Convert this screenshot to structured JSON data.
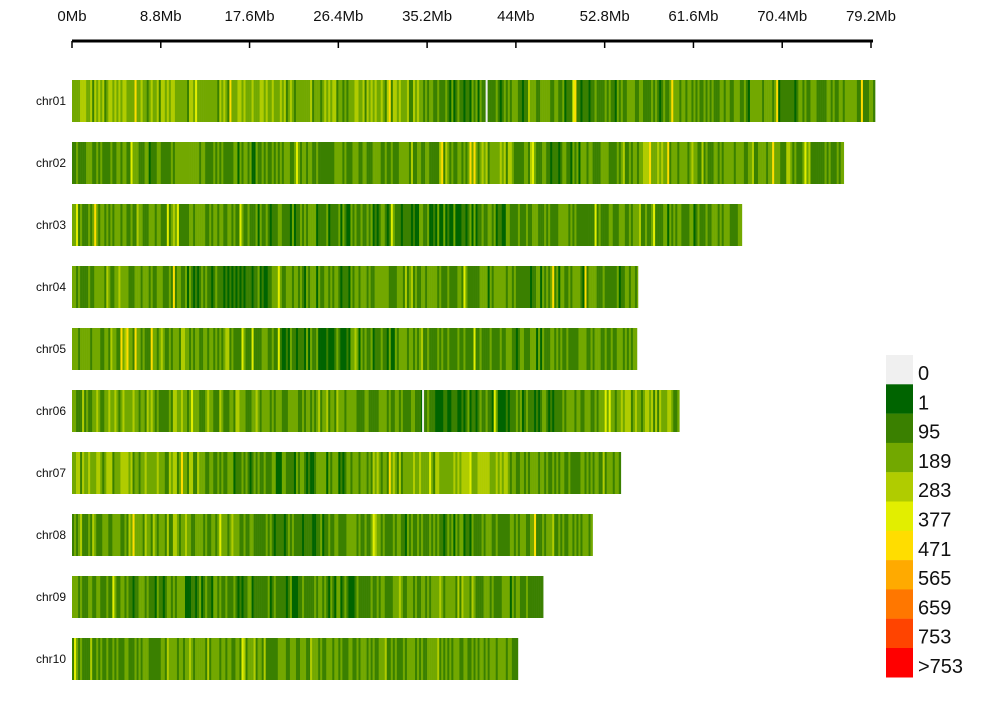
{
  "chart_data": {
    "type": "heatmap",
    "title": "",
    "xlabel": "",
    "ylabel": "",
    "x_unit": "Mb",
    "xlim": [
      0,
      79.2
    ],
    "x_ticks": [
      "0Mb",
      "8.8Mb",
      "17.6Mb",
      "26.4Mb",
      "35.2Mb",
      "44Mb",
      "52.8Mb",
      "61.6Mb",
      "70.4Mb",
      "79.2Mb"
    ],
    "x_tick_values": [
      0,
      8.8,
      17.6,
      26.4,
      35.2,
      44,
      52.8,
      61.6,
      70.4,
      79.2
    ],
    "segment_size_mb": 4,
    "chromosomes": [
      {
        "name": "chr01",
        "length_mb": 79.6,
        "gaps_mb": [
          41.0
        ],
        "density": [
          250,
          260,
          270,
          250,
          280,
          230,
          240,
          260,
          210,
          170,
          150,
          160,
          170,
          160,
          170,
          180,
          170,
          180,
          190,
          190
        ]
      },
      {
        "name": "chr02",
        "length_mb": 76.5,
        "gaps_mb": [],
        "density": [
          190,
          180,
          190,
          180,
          170,
          200,
          190,
          180,
          200,
          210,
          230,
          180,
          150,
          200,
          230,
          210,
          180,
          220,
          200
        ]
      },
      {
        "name": "chr03",
        "length_mb": 66.4,
        "gaps_mb": [],
        "density": [
          190,
          200,
          180,
          190,
          170,
          180,
          140,
          150,
          120,
          130,
          150,
          170,
          180,
          190,
          180,
          170,
          200
        ]
      },
      {
        "name": "chr04",
        "length_mb": 56.1,
        "gaps_mb": [],
        "density": [
          190,
          200,
          180,
          140,
          130,
          140,
          150,
          190,
          200,
          190,
          180,
          170,
          180,
          160
        ]
      },
      {
        "name": "chr05",
        "length_mb": 56.0,
        "gaps_mb": [],
        "density": [
          220,
          230,
          220,
          210,
          150,
          130,
          140,
          150,
          200,
          190,
          180,
          170,
          190,
          180
        ]
      },
      {
        "name": "chr06",
        "length_mb": 60.2,
        "gaps_mb": [
          34.7
        ],
        "density": [
          220,
          230,
          210,
          220,
          210,
          200,
          200,
          190,
          180,
          110,
          130,
          160,
          190,
          250,
          240
        ]
      },
      {
        "name": "chr07",
        "length_mb": 54.4,
        "gaps_mb": [],
        "density": [
          260,
          270,
          240,
          200,
          170,
          140,
          150,
          230,
          260,
          280,
          270,
          220,
          200,
          210
        ]
      },
      {
        "name": "chr08",
        "length_mb": 51.6,
        "gaps_mb": [],
        "density": [
          200,
          210,
          220,
          190,
          180,
          150,
          170,
          200,
          160,
          140,
          180,
          200,
          190
        ]
      },
      {
        "name": "chr09",
        "length_mb": 46.7,
        "gaps_mb": [],
        "density": [
          190,
          180,
          170,
          160,
          150,
          130,
          150,
          180,
          190,
          200,
          180,
          170
        ]
      },
      {
        "name": "chr10",
        "length_mb": 44.2,
        "gaps_mb": [],
        "density": [
          200,
          190,
          230,
          200,
          220,
          210,
          200,
          190,
          180,
          200,
          190
        ]
      }
    ],
    "legend": {
      "placement": "bottom-right",
      "entries": [
        {
          "label": "0",
          "min": 0,
          "color": "#f0f0f0"
        },
        {
          "label": "1",
          "min": 1,
          "color": "#006400"
        },
        {
          "label": "95",
          "min": 95,
          "color": "#3a8000"
        },
        {
          "label": "189",
          "min": 189,
          "color": "#72a800"
        },
        {
          "label": "283",
          "min": 283,
          "color": "#b0cc00"
        },
        {
          "label": "377",
          "min": 377,
          "color": "#e2ee00"
        },
        {
          "label": "471",
          "min": 471,
          "color": "#ffdd00"
        },
        {
          "label": "565",
          "min": 565,
          "color": "#ffaa00"
        },
        {
          "label": "659",
          "min": 659,
          "color": "#ff7700"
        },
        {
          "label": "753",
          "min": 753,
          "color": "#ff4400"
        },
        {
          "label": ">753",
          "min": 754,
          "color": "#ff0000"
        }
      ]
    }
  }
}
